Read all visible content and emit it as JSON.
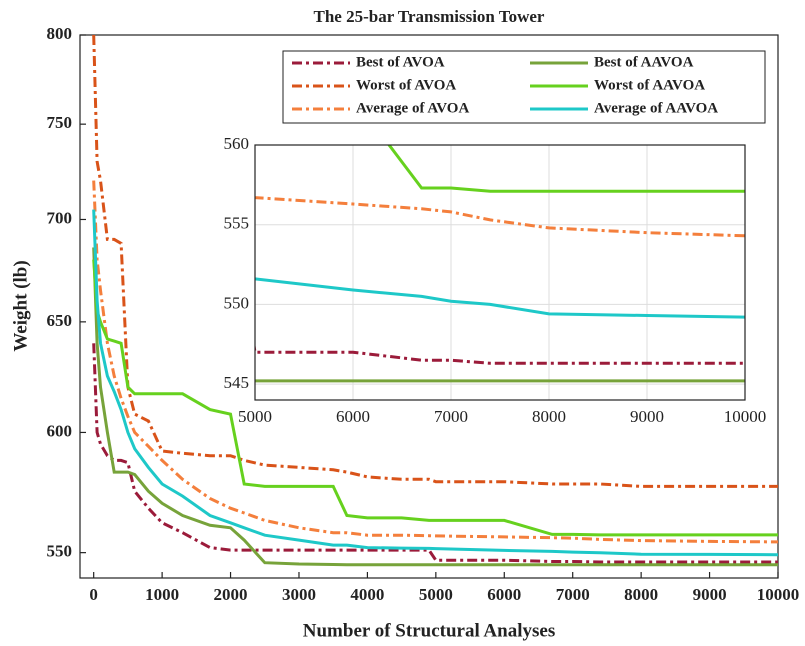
{
  "chart_data": [
    {
      "type": "line",
      "title": "The 25-bar Transmission Tower",
      "xlabel": "Number of Structural Analyses",
      "ylabel": "Weight (lb)",
      "x": [
        0,
        50,
        100,
        200,
        300,
        400,
        500,
        600,
        800,
        1000,
        1300,
        1700,
        2000,
        2200,
        2500,
        3000,
        3500,
        3700,
        4000,
        4500,
        4900,
        5000,
        6000,
        6700,
        7000,
        7400,
        8000,
        9000,
        10000
      ],
      "series": [
        {
          "name": "Best of AVOA",
          "color": "#9b1b3a",
          "linestyle": "dashdot",
          "values": [
            640,
            600,
            595,
            590,
            588,
            588,
            587,
            575,
            568,
            562,
            558,
            552,
            551,
            551,
            551,
            551,
            551,
            551,
            551,
            551,
            551,
            547,
            547,
            546.5,
            546.5,
            546.3,
            546.3,
            546.3,
            546.3
          ]
        },
        {
          "name": "Worst of AVOA",
          "color": "#d95319",
          "linestyle": "dashdot",
          "values": [
            800,
            730,
            720,
            690,
            690,
            688,
            620,
            608,
            605,
            592,
            591,
            590,
            590,
            588,
            586,
            585,
            584,
            583,
            581,
            580,
            580,
            579,
            579,
            578,
            578,
            578,
            577,
            577,
            577
          ]
        },
        {
          "name": "Average of AVOA",
          "color": "#f47f3c",
          "linestyle": "dashdot",
          "values": [
            720,
            680,
            665,
            640,
            625,
            615,
            607,
            600,
            594,
            588,
            580,
            572,
            568,
            566,
            563,
            560,
            558,
            558,
            557,
            557,
            556.8,
            556.7,
            556.3,
            556,
            555.8,
            555.3,
            554.8,
            554.5,
            554.3
          ]
        },
        {
          "name": "Best of AAVOA",
          "color": "#77a33a",
          "linestyle": "solid",
          "values": [
            686,
            640,
            620,
            600,
            583,
            583,
            583,
            582,
            575,
            570,
            565,
            561,
            560,
            555,
            546,
            545.5,
            545.3,
            545.2,
            545.2,
            545.2,
            545.2,
            545.2,
            545.2,
            545.2,
            545.2,
            545.2,
            545.2,
            545.2,
            545.2
          ]
        },
        {
          "name": "Worst of AAVOA",
          "color": "#66d11e",
          "linestyle": "solid",
          "values": [
            680,
            655,
            650,
            642,
            641,
            640,
            620,
            617,
            617,
            617,
            617,
            610,
            608,
            578,
            577,
            577,
            577,
            565,
            564,
            564,
            563,
            563,
            563,
            557.3,
            557.3,
            557.1,
            557.1,
            557.1,
            557.1
          ]
        },
        {
          "name": "Average of AAVOA",
          "color": "#1ec8c8",
          "linestyle": "solid",
          "values": [
            705,
            660,
            640,
            625,
            618,
            610,
            600,
            593,
            585,
            578,
            573,
            565,
            562,
            560,
            557,
            555,
            553,
            553,
            552,
            551.8,
            551.7,
            551.6,
            550.9,
            550.5,
            550.2,
            550,
            549.4,
            549.3,
            549.2
          ]
        }
      ],
      "xlim": [
        -200,
        10000
      ],
      "xticks": [
        0,
        1000,
        2000,
        3000,
        4000,
        5000,
        6000,
        7000,
        8000,
        9000,
        10000
      ],
      "ylim": [
        540,
        800
      ],
      "yticks": [
        550,
        600,
        650,
        700,
        750,
        800
      ],
      "yscale": "log",
      "grid": false,
      "legend": "upper right"
    },
    {
      "type": "line",
      "xlim": [
        5000,
        10000
      ],
      "xticks": [
        5000,
        6000,
        7000,
        8000,
        9000,
        10000
      ],
      "ylim": [
        544,
        560
      ],
      "yticks": [
        545,
        550,
        555,
        560
      ],
      "grid": true
    }
  ]
}
